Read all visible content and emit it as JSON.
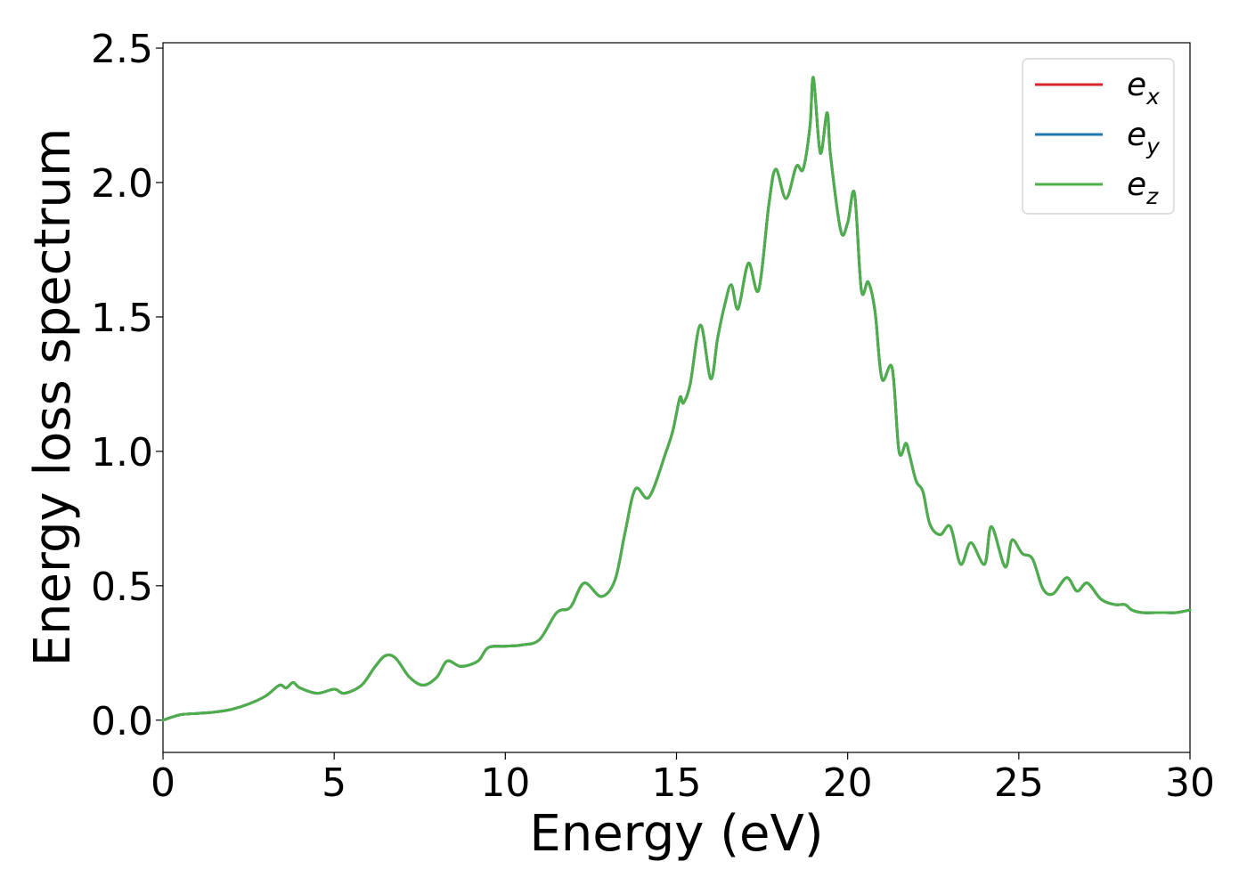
{
  "chart_data": {
    "type": "line",
    "xlabel": "Energy (eV)",
    "ylabel": "Energy loss spectrum",
    "xlim": [
      0,
      30
    ],
    "ylim": [
      -0.12,
      2.52
    ],
    "xticks": [
      0,
      5,
      10,
      15,
      20,
      25,
      30
    ],
    "xtick_labels": [
      "0",
      "5",
      "10",
      "15",
      "20",
      "25",
      "30"
    ],
    "yticks": [
      0.0,
      0.5,
      1.0,
      1.5,
      2.0,
      2.5
    ],
    "ytick_labels": [
      "0.0",
      "0.5",
      "1.0",
      "1.5",
      "2.0",
      "2.5"
    ],
    "grid": false,
    "legend_position": "top-right",
    "legend": [
      {
        "base": "e",
        "sub": "x",
        "color": "#d62728"
      },
      {
        "base": "e",
        "sub": "y",
        "color": "#1f77b4"
      },
      {
        "base": "e",
        "sub": "z",
        "color": "#4daf4a"
      }
    ],
    "series": [
      {
        "color": "#d62728",
        "x": [
          0,
          0.5,
          1.0,
          1.5,
          2.0,
          2.5,
          3.0,
          3.4,
          3.6,
          3.8,
          4.0,
          4.5,
          5.0,
          5.3,
          5.8,
          6.2,
          6.5,
          6.8,
          7.2,
          7.6,
          8.0,
          8.3,
          8.7,
          9.2,
          9.5,
          10.0,
          10.5,
          11.0,
          11.5,
          11.9,
          12.3,
          12.8,
          13.2,
          13.5,
          13.8,
          14.2,
          14.7,
          14.9,
          15.1,
          15.2,
          15.4,
          15.7,
          16.0,
          16.2,
          16.4,
          16.6,
          16.8,
          17.1,
          17.4,
          17.7,
          17.9,
          18.2,
          18.5,
          18.7,
          18.9,
          19.0,
          19.2,
          19.4,
          19.5,
          19.8,
          20.0,
          20.2,
          20.4,
          20.6,
          20.8,
          21.0,
          21.3,
          21.5,
          21.7,
          21.8,
          22.0,
          22.2,
          22.4,
          22.7,
          23.0,
          23.3,
          23.6,
          24.0,
          24.2,
          24.6,
          24.8,
          25.1,
          25.4,
          25.7,
          26.0,
          26.4,
          26.7,
          27.0,
          27.4,
          27.8,
          28.1,
          28.3,
          28.6,
          29.0,
          29.3,
          29.6,
          30.0
        ],
        "y": [
          0.0,
          0.02,
          0.025,
          0.03,
          0.04,
          0.06,
          0.09,
          0.13,
          0.12,
          0.14,
          0.12,
          0.1,
          0.115,
          0.1,
          0.13,
          0.2,
          0.24,
          0.23,
          0.16,
          0.13,
          0.16,
          0.22,
          0.2,
          0.22,
          0.27,
          0.275,
          0.28,
          0.3,
          0.4,
          0.42,
          0.51,
          0.46,
          0.52,
          0.7,
          0.86,
          0.83,
          1.0,
          1.08,
          1.2,
          1.18,
          1.25,
          1.47,
          1.27,
          1.42,
          1.54,
          1.62,
          1.53,
          1.7,
          1.6,
          1.92,
          2.05,
          1.94,
          2.06,
          2.05,
          2.21,
          2.39,
          2.11,
          2.26,
          2.1,
          1.82,
          1.85,
          1.96,
          1.6,
          1.63,
          1.52,
          1.27,
          1.31,
          1.0,
          1.03,
          0.99,
          0.89,
          0.85,
          0.73,
          0.69,
          0.72,
          0.58,
          0.66,
          0.58,
          0.72,
          0.57,
          0.67,
          0.62,
          0.6,
          0.49,
          0.47,
          0.53,
          0.48,
          0.51,
          0.45,
          0.43,
          0.43,
          0.41,
          0.4,
          0.4,
          0.4,
          0.4,
          0.41
        ]
      },
      {
        "color": "#1f77b4",
        "x": [
          0,
          0.5,
          1.0,
          1.5,
          2.0,
          2.5,
          3.0,
          3.4,
          3.6,
          3.8,
          4.0,
          4.5,
          5.0,
          5.3,
          5.8,
          6.2,
          6.5,
          6.8,
          7.2,
          7.6,
          8.0,
          8.3,
          8.7,
          9.2,
          9.5,
          10.0,
          10.5,
          11.0,
          11.5,
          11.9,
          12.3,
          12.8,
          13.2,
          13.5,
          13.8,
          14.2,
          14.7,
          14.9,
          15.1,
          15.2,
          15.4,
          15.7,
          16.0,
          16.2,
          16.4,
          16.6,
          16.8,
          17.1,
          17.4,
          17.7,
          17.9,
          18.2,
          18.5,
          18.7,
          18.9,
          19.0,
          19.2,
          19.4,
          19.5,
          19.8,
          20.0,
          20.2,
          20.4,
          20.6,
          20.8,
          21.0,
          21.3,
          21.5,
          21.7,
          21.8,
          22.0,
          22.2,
          22.4,
          22.7,
          23.0,
          23.3,
          23.6,
          24.0,
          24.2,
          24.6,
          24.8,
          25.1,
          25.4,
          25.7,
          26.0,
          26.4,
          26.7,
          27.0,
          27.4,
          27.8,
          28.1,
          28.3,
          28.6,
          29.0,
          29.3,
          29.6,
          30.0
        ],
        "y": [
          0.0,
          0.02,
          0.025,
          0.03,
          0.04,
          0.06,
          0.09,
          0.13,
          0.12,
          0.14,
          0.12,
          0.1,
          0.115,
          0.1,
          0.13,
          0.2,
          0.24,
          0.23,
          0.16,
          0.13,
          0.16,
          0.22,
          0.2,
          0.22,
          0.27,
          0.275,
          0.28,
          0.3,
          0.4,
          0.42,
          0.51,
          0.46,
          0.52,
          0.7,
          0.86,
          0.83,
          1.0,
          1.08,
          1.2,
          1.18,
          1.25,
          1.47,
          1.27,
          1.42,
          1.54,
          1.62,
          1.53,
          1.7,
          1.6,
          1.92,
          2.05,
          1.94,
          2.06,
          2.05,
          2.21,
          2.39,
          2.11,
          2.26,
          2.1,
          1.82,
          1.85,
          1.96,
          1.6,
          1.63,
          1.52,
          1.27,
          1.31,
          1.0,
          1.03,
          0.99,
          0.89,
          0.85,
          0.73,
          0.69,
          0.72,
          0.58,
          0.66,
          0.58,
          0.72,
          0.57,
          0.67,
          0.62,
          0.6,
          0.49,
          0.47,
          0.53,
          0.48,
          0.51,
          0.45,
          0.43,
          0.43,
          0.41,
          0.4,
          0.4,
          0.4,
          0.4,
          0.41
        ]
      },
      {
        "color": "#4daf4a",
        "x": [
          0,
          0.5,
          1.0,
          1.5,
          2.0,
          2.5,
          3.0,
          3.4,
          3.6,
          3.8,
          4.0,
          4.5,
          5.0,
          5.3,
          5.8,
          6.2,
          6.5,
          6.8,
          7.2,
          7.6,
          8.0,
          8.3,
          8.7,
          9.2,
          9.5,
          10.0,
          10.5,
          11.0,
          11.5,
          11.9,
          12.3,
          12.8,
          13.2,
          13.5,
          13.8,
          14.2,
          14.7,
          14.9,
          15.1,
          15.2,
          15.4,
          15.7,
          16.0,
          16.2,
          16.4,
          16.6,
          16.8,
          17.1,
          17.4,
          17.7,
          17.9,
          18.2,
          18.5,
          18.7,
          18.9,
          19.0,
          19.2,
          19.4,
          19.5,
          19.8,
          20.0,
          20.2,
          20.4,
          20.6,
          20.8,
          21.0,
          21.3,
          21.5,
          21.7,
          21.8,
          22.0,
          22.2,
          22.4,
          22.7,
          23.0,
          23.3,
          23.6,
          24.0,
          24.2,
          24.6,
          24.8,
          25.1,
          25.4,
          25.7,
          26.0,
          26.4,
          26.7,
          27.0,
          27.4,
          27.8,
          28.1,
          28.3,
          28.6,
          29.0,
          29.3,
          29.6,
          30.0
        ],
        "y": [
          0.0,
          0.02,
          0.025,
          0.03,
          0.04,
          0.06,
          0.09,
          0.13,
          0.12,
          0.14,
          0.12,
          0.1,
          0.115,
          0.1,
          0.13,
          0.2,
          0.24,
          0.23,
          0.16,
          0.13,
          0.16,
          0.22,
          0.2,
          0.22,
          0.27,
          0.275,
          0.28,
          0.3,
          0.4,
          0.42,
          0.51,
          0.46,
          0.52,
          0.7,
          0.86,
          0.83,
          1.0,
          1.08,
          1.2,
          1.18,
          1.25,
          1.47,
          1.27,
          1.42,
          1.54,
          1.62,
          1.53,
          1.7,
          1.6,
          1.92,
          2.05,
          1.94,
          2.06,
          2.05,
          2.21,
          2.39,
          2.11,
          2.26,
          2.1,
          1.82,
          1.85,
          1.96,
          1.6,
          1.63,
          1.52,
          1.27,
          1.31,
          1.0,
          1.03,
          0.99,
          0.89,
          0.85,
          0.73,
          0.69,
          0.72,
          0.58,
          0.66,
          0.58,
          0.72,
          0.57,
          0.67,
          0.62,
          0.6,
          0.49,
          0.47,
          0.53,
          0.48,
          0.51,
          0.45,
          0.43,
          0.43,
          0.41,
          0.4,
          0.4,
          0.4,
          0.4,
          0.41
        ]
      }
    ]
  }
}
